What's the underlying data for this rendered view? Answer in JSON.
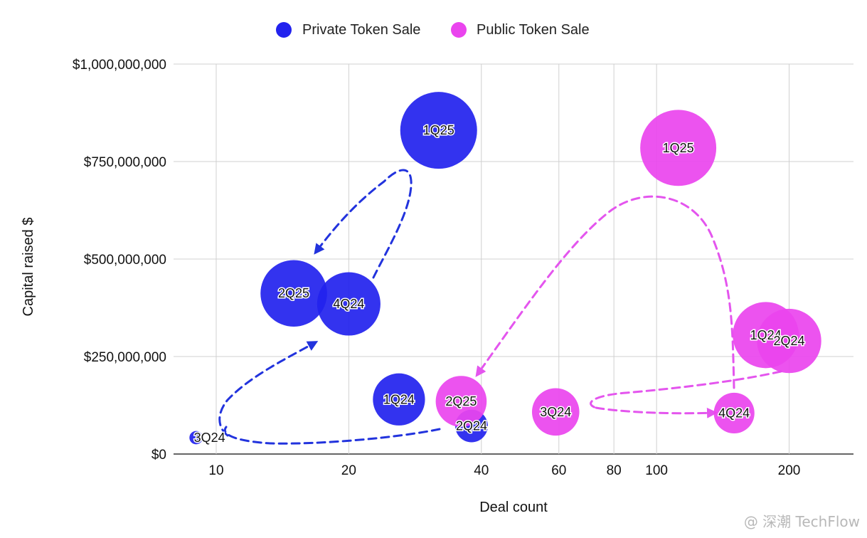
{
  "chart_data": {
    "type": "scatter",
    "subtype": "bubble",
    "title": "",
    "xlabel": "Deal count",
    "ylabel": "Capital raised $",
    "x_scale": "log",
    "xlim": [
      8,
      280
    ],
    "ylim": [
      0,
      1000000000
    ],
    "x_ticks": [
      10,
      20,
      40,
      60,
      80,
      100,
      200
    ],
    "x_tick_labels": [
      "10",
      "20",
      "40",
      "60",
      "80",
      "100",
      "200"
    ],
    "y_ticks": [
      0,
      250000000,
      500000000,
      750000000,
      1000000000
    ],
    "y_tick_labels": [
      "$0",
      "$250,000,000",
      "$500,000,000",
      "$750,000,000",
      "$1,000,000,000"
    ],
    "grid": true,
    "legend_position": "top-center",
    "series": [
      {
        "name": "Private Token Sale",
        "color": "#2222ee",
        "points": [
          {
            "label": "3Q24",
            "x": 9,
            "y": 42000000,
            "size": 0.03
          },
          {
            "label": "4Q24",
            "x": 20,
            "y": 385000000,
            "size": 0.68
          },
          {
            "label": "1Q25",
            "x": 32,
            "y": 830000000,
            "size": 1.0
          },
          {
            "label": "2Q25",
            "x": 15,
            "y": 412000000,
            "size": 0.75
          },
          {
            "label": "1Q24",
            "x": 26,
            "y": 140000000,
            "size": 0.46
          },
          {
            "label": "2Q24",
            "x": 38,
            "y": 72000000,
            "size": 0.18
          }
        ]
      },
      {
        "name": "Public Token Sale",
        "color": "#ea44ee",
        "points": [
          {
            "label": "1Q25",
            "x": 112,
            "y": 785000000,
            "size": 0.98
          },
          {
            "label": "1Q24",
            "x": 177,
            "y": 305000000,
            "size": 0.74
          },
          {
            "label": "2Q24",
            "x": 200,
            "y": 290000000,
            "size": 0.7
          },
          {
            "label": "3Q24",
            "x": 59,
            "y": 108000000,
            "size": 0.38
          },
          {
            "label": "4Q24",
            "x": 150,
            "y": 105000000,
            "size": 0.28
          },
          {
            "label": "2Q25",
            "x": 36,
            "y": 135000000,
            "size": 0.44
          }
        ]
      }
    ]
  },
  "watermark": "@ 深潮 TechFlow"
}
